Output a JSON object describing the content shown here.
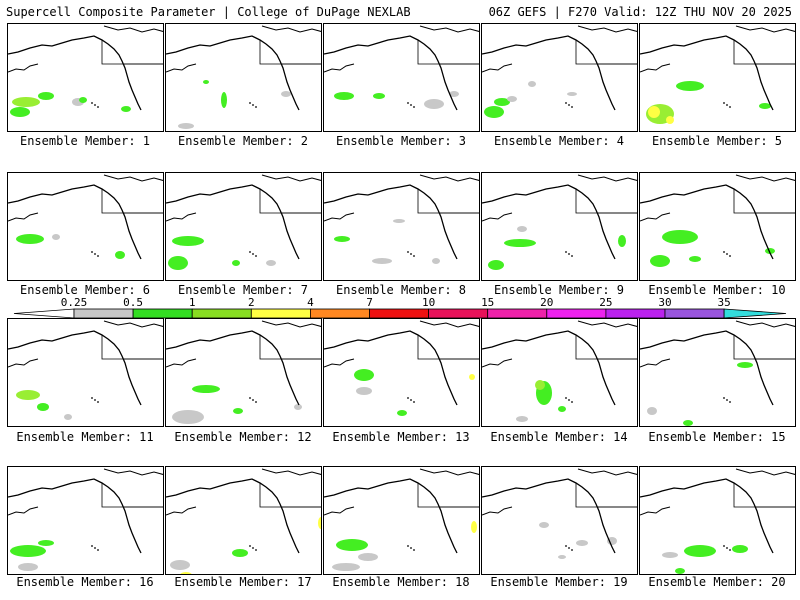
{
  "header": {
    "left": "Supercell Composite Parameter | College of DuPage NEXLAB",
    "right": "06Z GEFS | F270 Valid: 12Z THU NOV 20 2025"
  },
  "colors": {
    "gray": "#c8c8c8",
    "green": "#44ee22",
    "lightgreen": "#99ee33",
    "yellow": "#ffff44",
    "orange": "#ff9922",
    "red": "#ee2222"
  },
  "scale": {
    "labels": [
      "0.25",
      "0.5",
      "1",
      "2",
      "4",
      "7",
      "10",
      "15",
      "20",
      "25",
      "30",
      "35"
    ],
    "segment_colors": [
      "#c8c8c8",
      "#33dd22",
      "#88dd22",
      "#ffff44",
      "#ff8822",
      "#ee1111",
      "#e8125a",
      "#ee22aa",
      "#ee22ee",
      "#bb22ee",
      "#9955dd",
      "#33dddd"
    ]
  },
  "members": [
    {
      "label": "Ensemble Member: 1"
    },
    {
      "label": "Ensemble Member: 2"
    },
    {
      "label": "Ensemble Member: 3"
    },
    {
      "label": "Ensemble Member: 4"
    },
    {
      "label": "Ensemble Member: 5"
    },
    {
      "label": "Ensemble Member: 6"
    },
    {
      "label": "Ensemble Member: 7"
    },
    {
      "label": "Ensemble Member: 8"
    },
    {
      "label": "Ensemble Member: 9"
    },
    {
      "label": "Ensemble Member: 10"
    },
    {
      "label": "Ensemble Member: 11"
    },
    {
      "label": "Ensemble Member: 12"
    },
    {
      "label": "Ensemble Member: 13"
    },
    {
      "label": "Ensemble Member: 14"
    },
    {
      "label": "Ensemble Member: 15"
    },
    {
      "label": "Ensemble Member: 16"
    },
    {
      "label": "Ensemble Member: 17"
    },
    {
      "label": "Ensemble Member: 18"
    },
    {
      "label": "Ensemble Member: 19"
    },
    {
      "label": "Ensemble Member: 20"
    }
  ]
}
